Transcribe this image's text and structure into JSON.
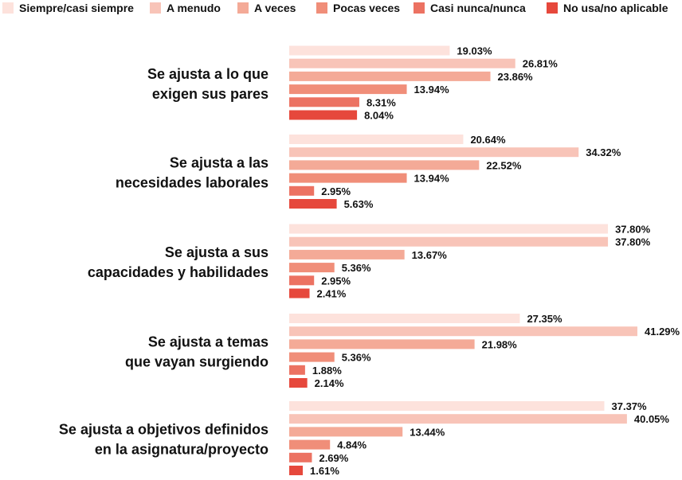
{
  "chart_data": {
    "type": "bar",
    "orientation": "horizontal",
    "legend_position": "top",
    "grid": false,
    "xlim": [
      0,
      45
    ],
    "value_suffix": "%",
    "categories": [
      [
        "Se ajusta a lo que",
        "exigen sus pares"
      ],
      [
        "Se ajusta a las",
        "necesidades laborales"
      ],
      [
        "Se ajusta a sus",
        "capacidades y habilidades"
      ],
      [
        "Se ajusta a temas",
        "que vayan surgiendo"
      ],
      [
        "Se ajusta a objetivos definidos",
        "en la asignatura/proyecto"
      ]
    ],
    "series": [
      {
        "name": "Siempre/casi siempre",
        "color": "#fde2dc",
        "values": [
          19.03,
          20.64,
          37.8,
          27.35,
          37.37
        ]
      },
      {
        "name": "A menudo",
        "color": "#f8c4b8",
        "values": [
          26.81,
          34.32,
          37.8,
          41.29,
          40.05
        ]
      },
      {
        "name": "A veces",
        "color": "#f4aa97",
        "values": [
          23.86,
          22.52,
          13.67,
          21.98,
          13.44
        ]
      },
      {
        "name": "Pocas veces",
        "color": "#f08e79",
        "values": [
          13.94,
          13.94,
          5.36,
          5.36,
          4.84
        ]
      },
      {
        "name": "Casi nunca/nunca",
        "color": "#ec7262",
        "values": [
          8.31,
          2.95,
          2.95,
          1.88,
          2.69
        ]
      },
      {
        "name": "No usa/no aplicable",
        "color": "#e6483c",
        "values": [
          8.04,
          5.63,
          2.41,
          2.14,
          1.61
        ]
      }
    ]
  }
}
